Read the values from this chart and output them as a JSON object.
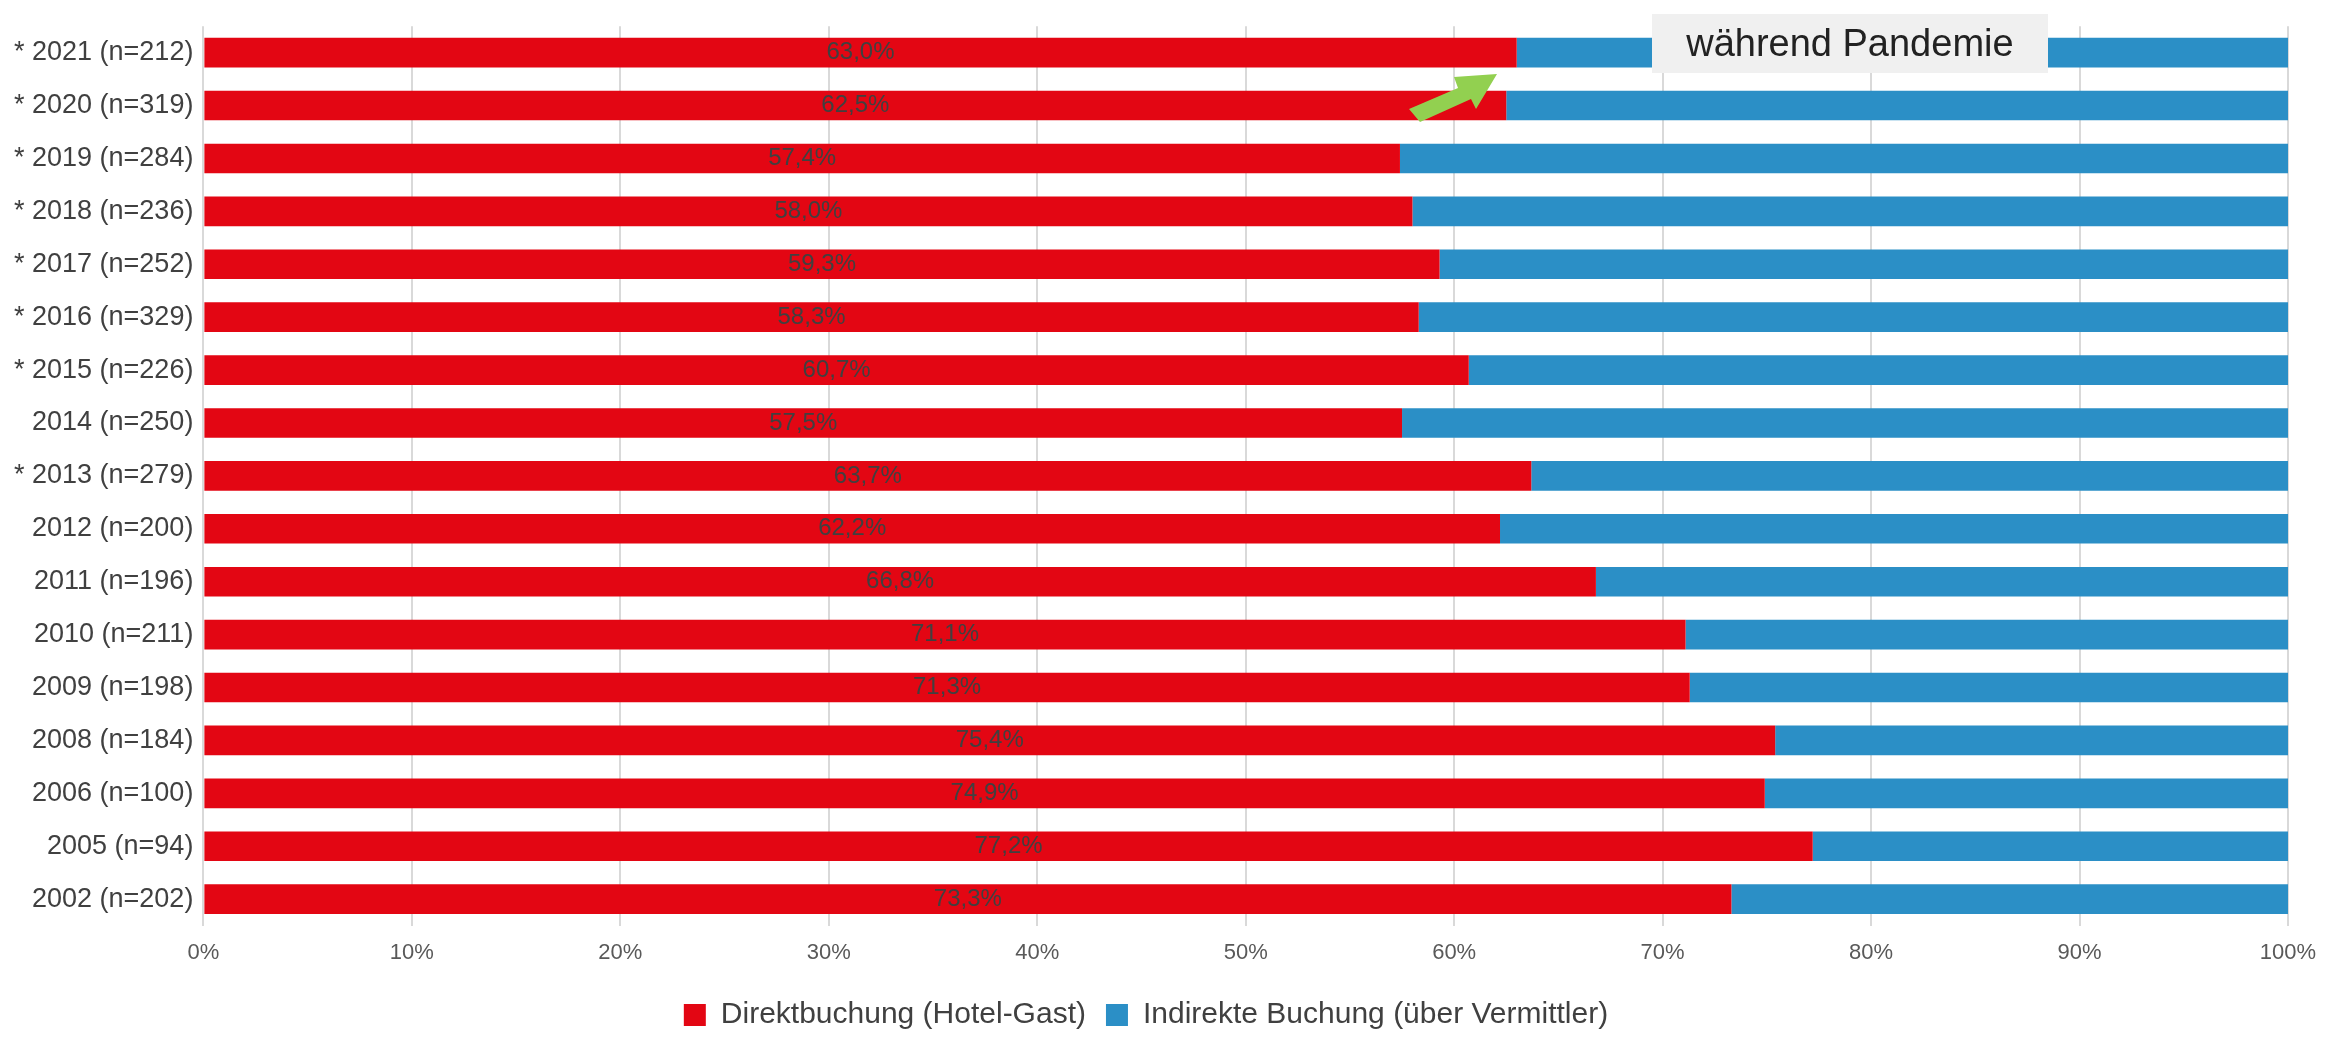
{
  "chart_data": {
    "type": "bar",
    "orientation": "horizontal",
    "stacked": true,
    "categories": [
      "* 2021 (n=212)",
      "* 2020 (n=319)",
      "* 2019 (n=284)",
      "* 2018 (n=236)",
      "* 2017 (n=252)",
      "* 2016 (n=329)",
      "* 2015 (n=226)",
      "2014 (n=250)",
      "* 2013 (n=279)",
      "2012 (n=200)",
      "2011 (n=196)",
      "2010 (n=211)",
      "2009 (n=198)",
      "2008 (n=184)",
      "2006 (n=100)",
      "2005 (n=94)",
      "2002 (n=202)"
    ],
    "series": [
      {
        "name": "Direktbuchung (Hotel-Gast)",
        "color": "#e30613",
        "values": [
          63.0,
          62.5,
          57.4,
          58.0,
          59.3,
          58.3,
          60.7,
          57.5,
          63.7,
          62.2,
          66.8,
          71.1,
          71.3,
          75.4,
          74.9,
          77.2,
          73.3
        ],
        "value_labels": [
          "63,0%",
          "62,5%",
          "57,4%",
          "58,0%",
          "59,3%",
          "58,3%",
          "60,7%",
          "57,5%",
          "63,7%",
          "62,2%",
          "66,8%",
          "71,1%",
          "71,3%",
          "75,4%",
          "74,9%",
          "77,2%",
          "73,3%"
        ]
      },
      {
        "name": "Indirekte Buchung (über Vermittler)",
        "color": "#2b8fc6",
        "values": [
          37.0,
          37.5,
          42.6,
          42.0,
          40.7,
          41.7,
          39.3,
          42.5,
          36.3,
          37.8,
          33.2,
          28.9,
          28.7,
          24.6,
          25.1,
          22.8,
          26.7
        ]
      }
    ],
    "xlim": [
      0,
      100
    ],
    "xticks": [
      {
        "value": 0,
        "label": "0%"
      },
      {
        "value": 10,
        "label": "10%"
      },
      {
        "value": 20,
        "label": "20%"
      },
      {
        "value": 30,
        "label": "30%"
      },
      {
        "value": 40,
        "label": "40%"
      },
      {
        "value": 50,
        "label": "50%"
      },
      {
        "value": 60,
        "label": "60%"
      },
      {
        "value": 70,
        "label": "70%"
      },
      {
        "value": 80,
        "label": "80%"
      },
      {
        "value": 90,
        "label": "90%"
      },
      {
        "value": 100,
        "label": "100%"
      }
    ],
    "annotations": [
      "während Pandemie"
    ],
    "grid": "x",
    "legend": "bottom"
  }
}
